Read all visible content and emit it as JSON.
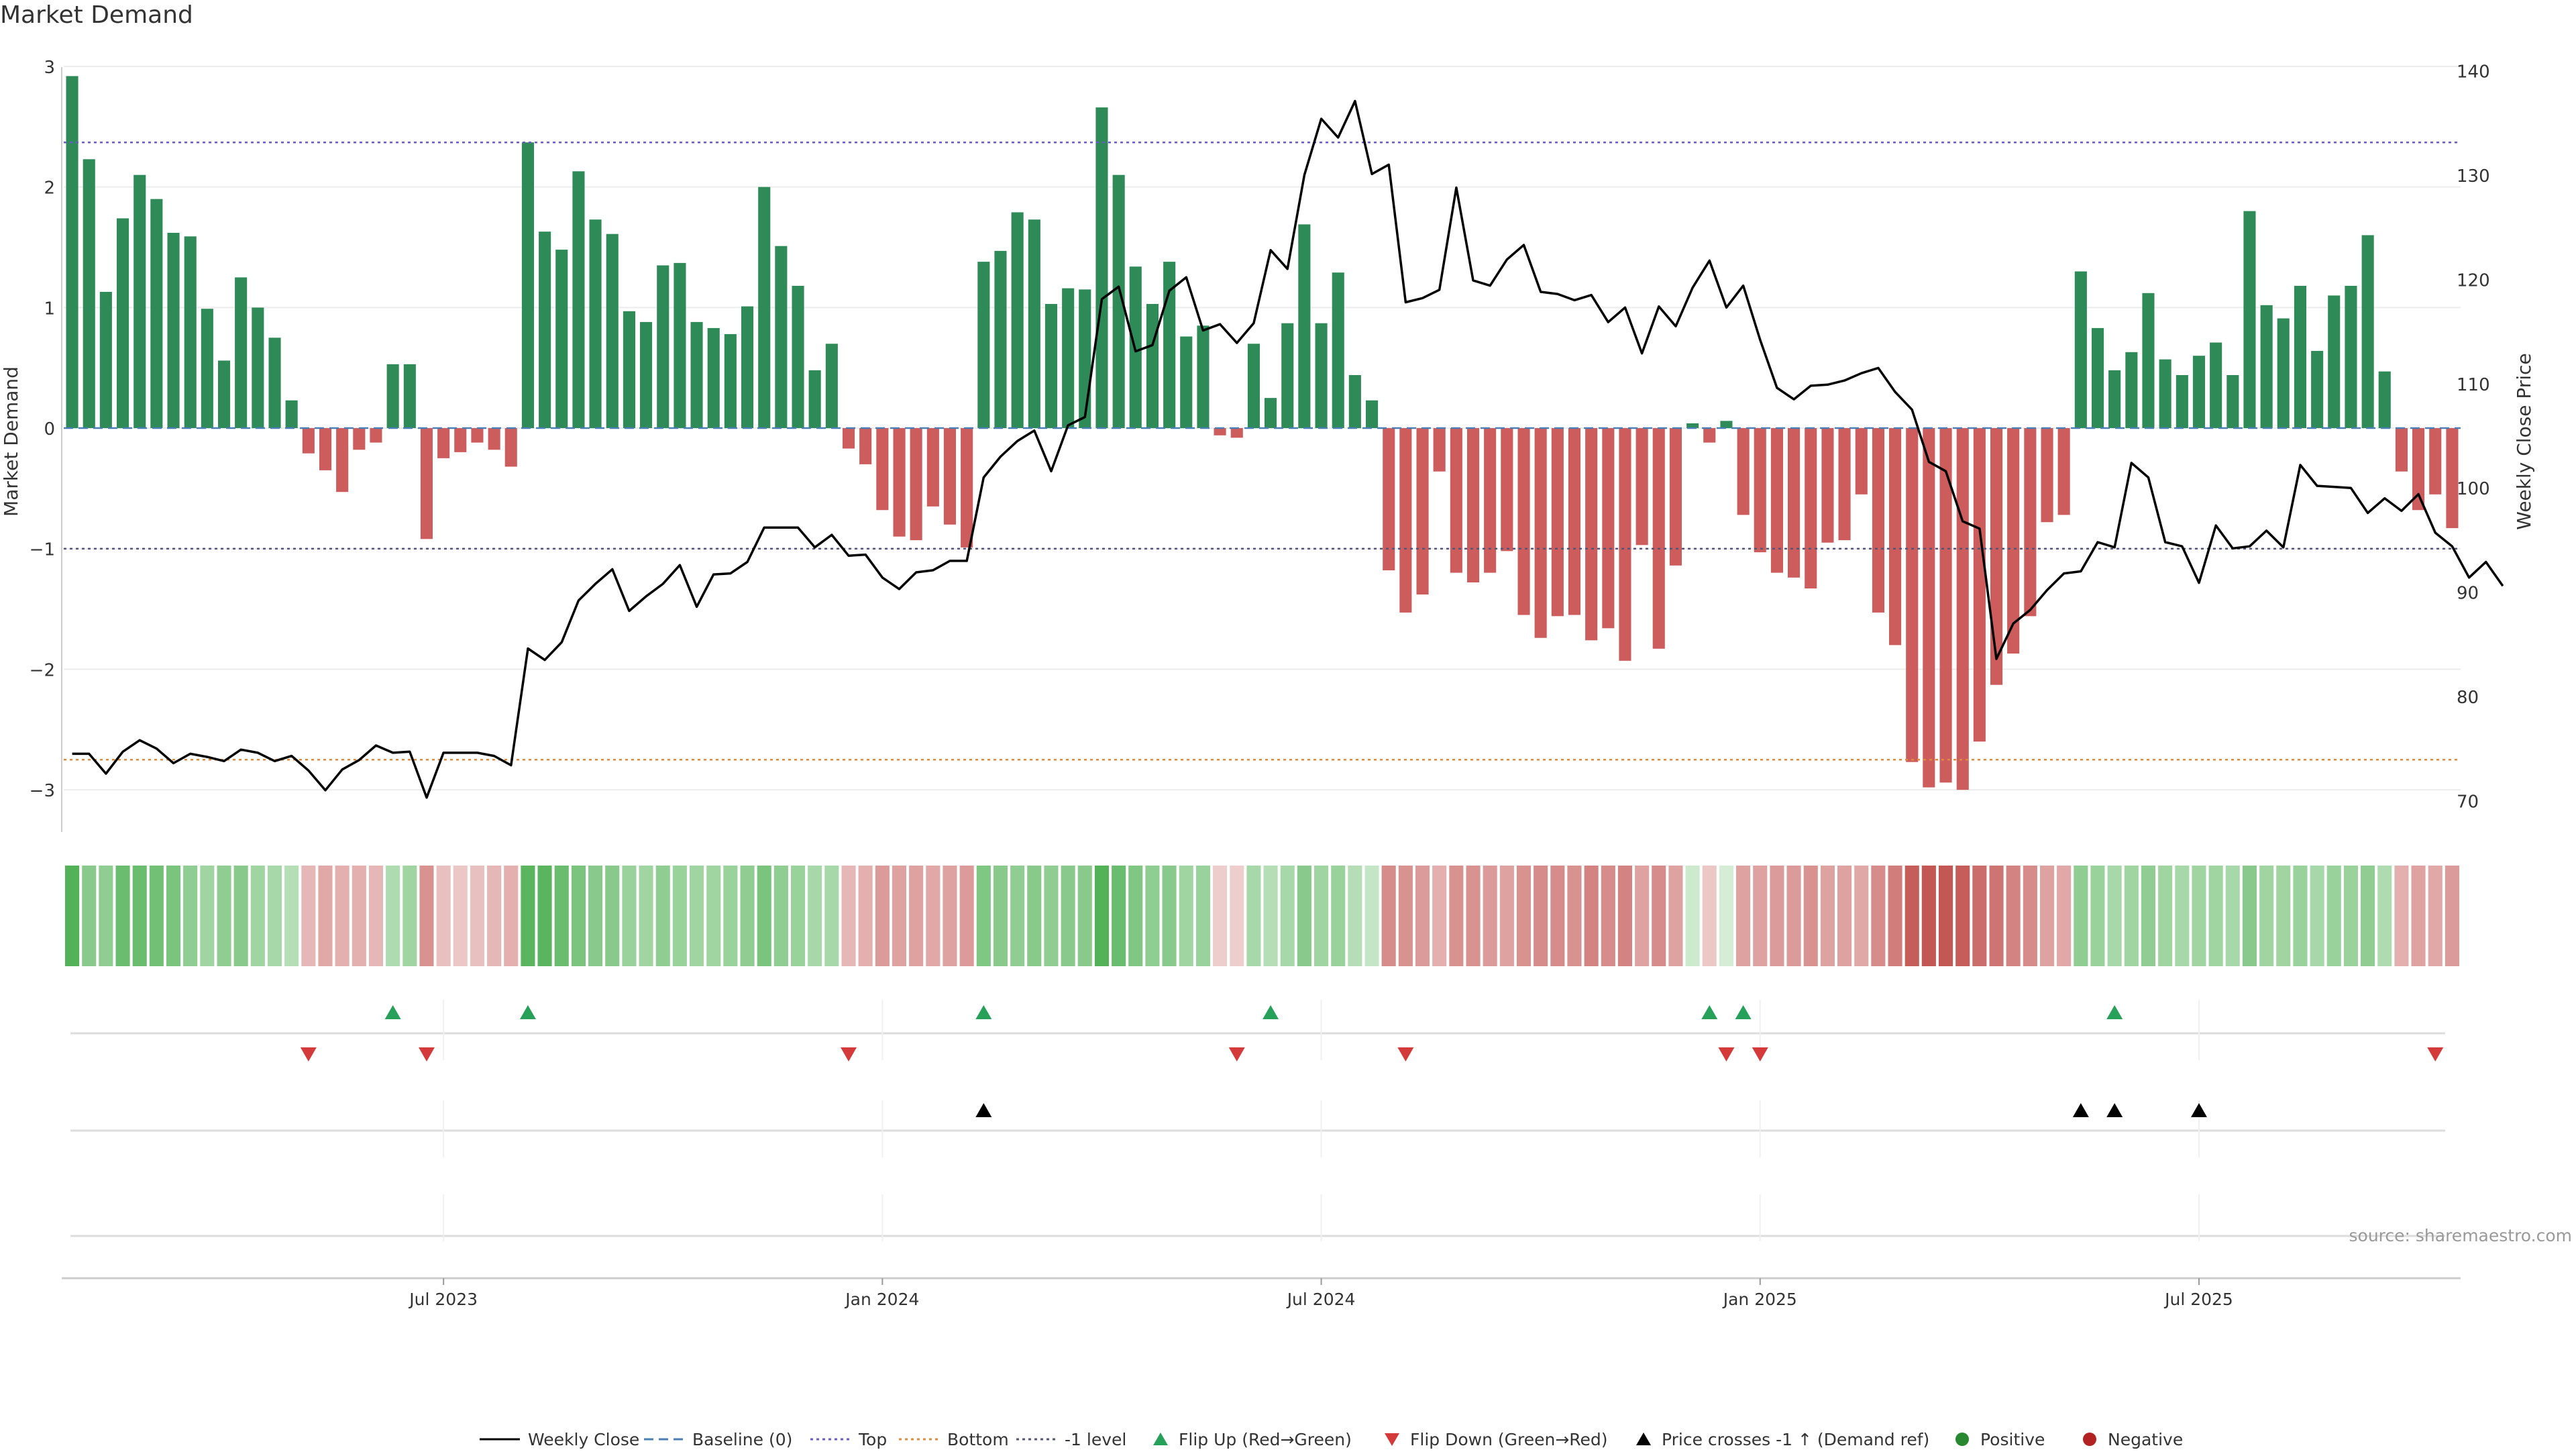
{
  "title": "Market Demand",
  "source": "source: sharemaestro.com",
  "chart_data": {
    "type": "bar",
    "title": "Market Demand",
    "ylabel_left": "Market Demand",
    "ylabel_right": "Weekly Close Price",
    "ylim_left": [
      -3.35,
      3.05
    ],
    "ylim_right": [
      67,
      141
    ],
    "yticks_left": [
      3,
      2,
      1,
      0,
      -1,
      -2,
      -3
    ],
    "yticks_left_labels": [
      "3",
      "2",
      "1",
      "0",
      "−1",
      "−2",
      "−3"
    ],
    "yticks_right": [
      140,
      130,
      120,
      110,
      100,
      90,
      80,
      70
    ],
    "x_tick_labels": [
      {
        "label": "Jul 2023",
        "week": 22
      },
      {
        "label": "Jan 2024",
        "week": 48
      },
      {
        "label": "Jul 2024",
        "week": 74
      },
      {
        "label": "Jan 2025",
        "week": 100
      },
      {
        "label": "Jul 2025",
        "week": 126
      }
    ],
    "reference_lines": {
      "top": 2.37,
      "bottom": -2.75,
      "minus_one": -1.0,
      "baseline": 0
    },
    "demand": [
      2.92,
      2.23,
      1.13,
      1.74,
      2.1,
      1.9,
      1.62,
      1.59,
      0.99,
      0.56,
      1.25,
      1.0,
      0.75,
      0.23,
      -0.21,
      -0.35,
      -0.53,
      -0.18,
      -0.12,
      0.53,
      0.53,
      -0.92,
      -0.25,
      -0.2,
      -0.12,
      -0.18,
      -0.32,
      2.37,
      1.63,
      1.48,
      2.13,
      1.73,
      1.61,
      0.97,
      0.88,
      1.35,
      1.37,
      0.88,
      0.83,
      0.78,
      1.01,
      2.0,
      1.51,
      1.18,
      0.48,
      0.7,
      -0.17,
      -0.3,
      -0.68,
      -0.9,
      -0.93,
      -0.65,
      -0.8,
      -0.99,
      1.38,
      1.47,
      1.79,
      1.73,
      1.03,
      1.16,
      1.15,
      2.66,
      2.1,
      1.34,
      1.03,
      1.38,
      0.76,
      0.85,
      -0.06,
      -0.08,
      0.7,
      0.25,
      0.87,
      1.69,
      0.87,
      1.29,
      0.44,
      0.23,
      -1.18,
      -1.53,
      -1.38,
      -0.36,
      -1.2,
      -1.28,
      -1.2,
      -1.02,
      -1.55,
      -1.74,
      -1.56,
      -1.55,
      -1.76,
      -1.66,
      -1.93,
      -0.97,
      -1.83,
      -1.14,
      0.04,
      -0.12,
      0.06,
      -0.72,
      -1.03,
      -1.2,
      -1.24,
      -1.33,
      -0.95,
      -0.93,
      -0.55,
      -1.53,
      -1.8,
      -2.77,
      -2.98,
      -2.94,
      -3.0,
      -2.6,
      -2.13,
      -1.87,
      -1.56,
      -0.78,
      -0.72,
      1.3,
      0.83,
      0.48,
      0.63,
      1.12,
      0.57,
      0.44,
      0.6,
      0.71,
      0.44,
      1.8,
      1.02,
      0.91,
      1.18,
      0.64,
      1.1,
      1.18,
      1.6,
      0.47,
      -0.36,
      -0.68,
      -0.55,
      -0.83
    ],
    "weekly_close": [
      74.5,
      74.5,
      72.6,
      74.7,
      75.8,
      75.0,
      73.6,
      74.5,
      74.2,
      73.8,
      74.9,
      74.6,
      73.8,
      74.3,
      72.9,
      71.0,
      73.0,
      73.9,
      75.3,
      74.6,
      74.7,
      70.3,
      74.6,
      74.6,
      74.6,
      74.3,
      73.4,
      84.6,
      83.5,
      85.2,
      89.2,
      90.8,
      92.2,
      88.2,
      89.6,
      90.8,
      92.6,
      88.6,
      91.7,
      91.8,
      92.9,
      96.2,
      96.2,
      96.2,
      94.3,
      95.5,
      93.5,
      93.6,
      91.4,
      90.3,
      91.9,
      92.1,
      93.0,
      93.0,
      101.0,
      103.0,
      104.5,
      105.5,
      101.6,
      106.0,
      106.8,
      118.1,
      119.3,
      113.1,
      113.7,
      118.9,
      120.2,
      115.1,
      115.7,
      113.9,
      115.8,
      122.8,
      121.0,
      130.0,
      135.4,
      133.6,
      137.1,
      130.1,
      131.0,
      117.8,
      118.2,
      119.0,
      128.8,
      119.9,
      119.4,
      121.9,
      123.3,
      118.8,
      118.6,
      118.0,
      118.5,
      115.9,
      117.3,
      112.9,
      117.4,
      115.5,
      119.2,
      121.8,
      117.3,
      119.4,
      114.2,
      109.6,
      108.5,
      109.8,
      109.9,
      110.3,
      111.0,
      111.5,
      109.2,
      107.5,
      102.5,
      101.6,
      96.8,
      96.1,
      83.6,
      87.0,
      88.3,
      90.2,
      91.8,
      92.0,
      94.8,
      94.3,
      102.4,
      101.0,
      94.8,
      94.4,
      90.9,
      96.4,
      94.2,
      94.4,
      95.9,
      94.3,
      102.2,
      100.2,
      100.1,
      100.0,
      97.6,
      99.0,
      97.8,
      99.4,
      95.7,
      94.4,
      91.4,
      92.9,
      90.6
    ],
    "demand_strip": [
      0.95,
      0.6,
      0.55,
      0.8,
      0.8,
      0.75,
      0.7,
      0.55,
      0.45,
      0.55,
      0.6,
      0.45,
      0.4,
      0.3,
      0.3,
      0.4,
      0.35,
      0.35,
      0.3,
      0.35,
      0.45,
      0.55,
      0.25,
      0.2,
      0.25,
      0.3,
      0.35,
      0.9,
      0.9,
      0.8,
      0.7,
      0.6,
      0.6,
      0.5,
      0.45,
      0.55,
      0.5,
      0.45,
      0.45,
      0.5,
      0.55,
      0.7,
      0.55,
      0.5,
      0.4,
      0.4,
      0.3,
      0.35,
      0.5,
      0.45,
      0.45,
      0.4,
      0.45,
      0.5,
      0.65,
      0.6,
      0.55,
      0.6,
      0.55,
      0.6,
      0.6,
      0.95,
      0.8,
      0.65,
      0.55,
      0.6,
      0.45,
      0.5,
      0.15,
      0.15,
      0.4,
      0.3,
      0.4,
      0.6,
      0.45,
      0.5,
      0.3,
      0.2,
      0.6,
      0.55,
      0.5,
      0.35,
      0.55,
      0.55,
      0.5,
      0.45,
      0.55,
      0.6,
      0.6,
      0.55,
      0.65,
      0.6,
      0.65,
      0.45,
      0.6,
      0.45,
      0.15,
      0.2,
      0.1,
      0.45,
      0.45,
      0.5,
      0.5,
      0.55,
      0.45,
      0.45,
      0.4,
      0.6,
      0.7,
      0.9,
      0.95,
      0.95,
      0.9,
      0.8,
      0.75,
      0.65,
      0.6,
      0.45,
      0.4,
      0.55,
      0.5,
      0.4,
      0.45,
      0.55,
      0.45,
      0.4,
      0.45,
      0.45,
      0.4,
      0.6,
      0.45,
      0.45,
      0.5,
      0.4,
      0.5,
      0.5,
      0.55,
      0.35,
      0.35,
      0.45,
      0.4,
      0.5
    ],
    "flip_up_weeks": [
      19,
      27,
      54,
      71,
      97,
      99,
      121
    ],
    "flip_down_weeks": [
      14,
      21,
      46,
      69,
      79,
      98,
      100,
      140
    ],
    "price_cross_weeks": [
      54,
      119,
      121,
      126
    ],
    "legend": [
      {
        "label": "Weekly Close",
        "symbol": "solid-line",
        "color": "#000000"
      },
      {
        "label": "Baseline (0)",
        "symbol": "dash-line",
        "color": "#4a7fb5"
      },
      {
        "label": "Top",
        "symbol": "dot-line",
        "color": "#6a5acd"
      },
      {
        "label": "Bottom",
        "symbol": "dot-line",
        "color": "#e08a3c"
      },
      {
        "label": "-1 level",
        "symbol": "dot-line",
        "color": "#555577"
      },
      {
        "label": "Flip Up (Red→Green)",
        "symbol": "triangle-up",
        "color": "#27a05a"
      },
      {
        "label": "Flip Down (Green→Red)",
        "symbol": "triangle-down",
        "color": "#d43a3a"
      },
      {
        "label": "Price crosses -1 ↑ (Demand ref)",
        "symbol": "triangle-up",
        "color": "#000000"
      },
      {
        "label": "Positive",
        "symbol": "circle",
        "color": "#27882f"
      },
      {
        "label": "Negative",
        "symbol": "circle",
        "color": "#b22222"
      }
    ],
    "colors": {
      "positive_bar": "#2e8b57",
      "negative_bar": "#cd5c5c",
      "strip_positive": "#4caf50",
      "strip_negative": "#c0504d",
      "close_line": "#000000"
    }
  }
}
